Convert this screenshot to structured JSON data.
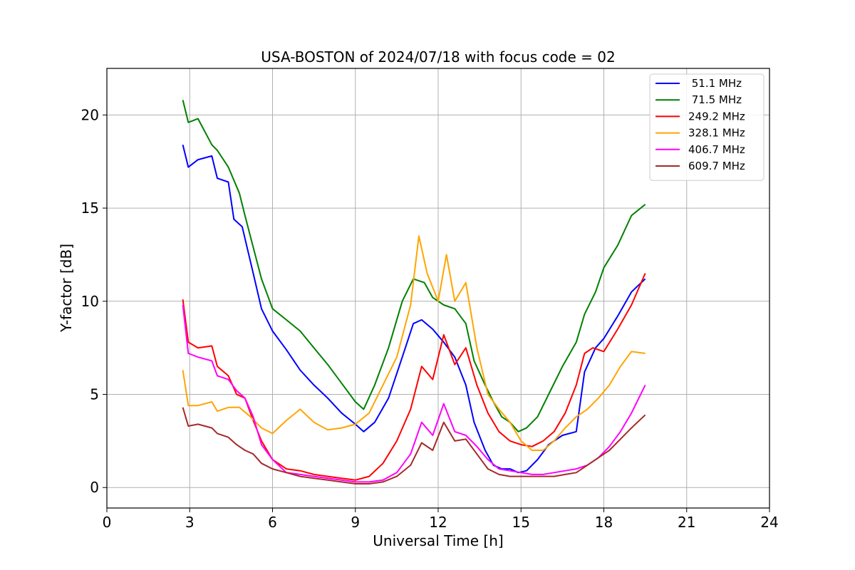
{
  "chart_data": {
    "type": "line",
    "title": "USA-BOSTON of 2024/07/18 with focus code = 02",
    "xlabel": "Universal Time [h]",
    "ylabel": "Y-factor [dB]",
    "xlim": [
      0,
      24
    ],
    "ylim": [
      -1.1,
      22.5
    ],
    "xticks": [
      0,
      3,
      6,
      9,
      12,
      15,
      18,
      21,
      24
    ],
    "yticks": [
      0,
      5,
      10,
      15,
      20
    ],
    "grid": true,
    "legend_position": "top-right",
    "series": [
      {
        "name": " 51.1 MHz",
        "color": "#0000ff",
        "x": [
          2.75,
          2.95,
          3.3,
          3.8,
          4.0,
          4.4,
          4.6,
          4.9,
          5.3,
          5.6,
          6.0,
          6.5,
          7.0,
          7.5,
          8.0,
          8.5,
          9.0,
          9.3,
          9.7,
          10.2,
          10.7,
          11.1,
          11.4,
          11.8,
          12.2,
          12.6,
          13.0,
          13.3,
          13.7,
          14.0,
          14.3,
          14.6,
          14.9,
          15.2,
          15.6,
          16.0,
          16.5,
          17.0,
          17.3,
          17.7,
          18.0,
          18.5,
          19.0,
          19.5
        ],
        "y": [
          18.4,
          17.2,
          17.6,
          17.8,
          16.6,
          16.4,
          14.4,
          14.0,
          11.5,
          9.6,
          8.4,
          7.4,
          6.3,
          5.5,
          4.8,
          4.0,
          3.4,
          3.0,
          3.5,
          4.8,
          7.0,
          8.8,
          9.0,
          8.5,
          7.8,
          7.0,
          5.5,
          3.5,
          2.0,
          1.2,
          1.0,
          1.0,
          0.8,
          0.9,
          1.5,
          2.3,
          2.8,
          3.0,
          6.2,
          7.5,
          8.0,
          9.2,
          10.5,
          11.2
        ]
      },
      {
        "name": " 71.5 MHz",
        "color": "#008000",
        "x": [
          2.75,
          2.95,
          3.3,
          3.8,
          4.0,
          4.4,
          4.8,
          5.0,
          5.3,
          5.6,
          6.0,
          6.5,
          7.0,
          7.5,
          8.0,
          8.5,
          9.0,
          9.3,
          9.7,
          10.2,
          10.7,
          11.1,
          11.5,
          11.8,
          12.2,
          12.6,
          13.0,
          13.3,
          13.7,
          14.0,
          14.3,
          14.6,
          14.9,
          15.2,
          15.6,
          16.0,
          16.5,
          17.0,
          17.3,
          17.7,
          18.0,
          18.5,
          19.0,
          19.5
        ],
        "y": [
          20.8,
          19.6,
          19.8,
          18.4,
          18.1,
          17.2,
          15.8,
          14.6,
          12.9,
          11.2,
          9.6,
          9.0,
          8.4,
          7.5,
          6.6,
          5.6,
          4.6,
          4.2,
          5.5,
          7.5,
          10.0,
          11.2,
          11.0,
          10.2,
          9.8,
          9.6,
          8.8,
          6.8,
          5.5,
          4.6,
          3.8,
          3.5,
          3.0,
          3.2,
          3.8,
          5.0,
          6.5,
          7.8,
          9.3,
          10.5,
          11.8,
          13.0,
          14.6,
          15.2
        ]
      },
      {
        "name": "249.2 MHz",
        "color": "#ff0000",
        "x": [
          2.75,
          2.95,
          3.3,
          3.8,
          4.0,
          4.4,
          4.7,
          5.0,
          5.3,
          5.6,
          6.0,
          6.5,
          7.0,
          7.5,
          8.0,
          8.5,
          9.0,
          9.5,
          10.0,
          10.5,
          11.0,
          11.4,
          11.8,
          12.2,
          12.6,
          13.0,
          13.4,
          13.8,
          14.2,
          14.6,
          15.0,
          15.4,
          15.8,
          16.2,
          16.6,
          17.0,
          17.3,
          17.6,
          18.0,
          18.5,
          19.0,
          19.5
        ],
        "y": [
          10.1,
          7.8,
          7.5,
          7.6,
          6.5,
          6.0,
          5.0,
          4.8,
          3.6,
          2.5,
          1.5,
          1.0,
          0.9,
          0.7,
          0.6,
          0.5,
          0.4,
          0.6,
          1.3,
          2.5,
          4.2,
          6.5,
          5.8,
          8.2,
          6.6,
          7.5,
          5.5,
          4.0,
          3.0,
          2.5,
          2.3,
          2.2,
          2.5,
          3.0,
          4.0,
          5.5,
          7.2,
          7.5,
          7.3,
          8.5,
          9.8,
          11.5
        ]
      },
      {
        "name": "328.1 MHz",
        "color": "#ffa500",
        "x": [
          2.75,
          2.95,
          3.3,
          3.8,
          4.0,
          4.4,
          4.8,
          5.2,
          5.6,
          6.0,
          6.5,
          7.0,
          7.5,
          8.0,
          8.5,
          9.0,
          9.5,
          10.0,
          10.5,
          11.0,
          11.3,
          11.6,
          12.0,
          12.3,
          12.6,
          13.0,
          13.4,
          13.8,
          14.2,
          14.6,
          15.0,
          15.4,
          15.8,
          16.2,
          16.6,
          17.0,
          17.4,
          17.8,
          18.2,
          18.6,
          19.0,
          19.5
        ],
        "y": [
          6.3,
          4.4,
          4.4,
          4.6,
          4.1,
          4.3,
          4.3,
          3.8,
          3.2,
          2.9,
          3.6,
          4.2,
          3.5,
          3.1,
          3.2,
          3.4,
          4.0,
          5.5,
          7.0,
          9.8,
          13.5,
          11.5,
          10.0,
          12.5,
          10.0,
          11.0,
          7.5,
          5.0,
          4.2,
          3.5,
          2.5,
          2.0,
          2.0,
          2.5,
          3.2,
          3.8,
          4.2,
          4.8,
          5.5,
          6.5,
          7.3,
          7.2
        ]
      },
      {
        "name": "406.7 MHz",
        "color": "#ff00ff",
        "x": [
          2.75,
          2.95,
          3.3,
          3.8,
          4.0,
          4.4,
          4.7,
          5.0,
          5.3,
          5.6,
          6.0,
          6.5,
          7.0,
          7.5,
          8.0,
          8.5,
          9.0,
          9.5,
          10.0,
          10.5,
          11.0,
          11.4,
          11.8,
          12.2,
          12.6,
          13.0,
          13.4,
          13.8,
          14.2,
          14.6,
          15.0,
          15.4,
          15.8,
          16.2,
          16.6,
          17.0,
          17.4,
          17.8,
          18.2,
          18.6,
          19.0,
          19.5
        ],
        "y": [
          9.8,
          7.2,
          7.0,
          6.8,
          6.0,
          5.8,
          5.2,
          4.8,
          3.8,
          2.3,
          1.5,
          0.8,
          0.7,
          0.6,
          0.5,
          0.4,
          0.3,
          0.3,
          0.4,
          0.8,
          1.8,
          3.5,
          2.8,
          4.5,
          3.0,
          2.8,
          2.2,
          1.5,
          1.0,
          0.9,
          0.8,
          0.7,
          0.7,
          0.8,
          0.9,
          1.0,
          1.2,
          1.6,
          2.2,
          3.0,
          4.0,
          5.5
        ]
      },
      {
        "name": "609.7 MHz",
        "color": "#a52a2a",
        "x": [
          2.75,
          2.95,
          3.3,
          3.8,
          4.0,
          4.4,
          4.7,
          5.0,
          5.3,
          5.6,
          6.0,
          6.5,
          7.0,
          7.5,
          8.0,
          8.5,
          9.0,
          9.5,
          10.0,
          10.5,
          11.0,
          11.4,
          11.8,
          12.2,
          12.6,
          13.0,
          13.4,
          13.8,
          14.2,
          14.6,
          15.0,
          15.4,
          15.8,
          16.2,
          16.6,
          17.0,
          17.4,
          17.8,
          18.2,
          18.6,
          19.0,
          19.5
        ],
        "y": [
          4.3,
          3.3,
          3.4,
          3.2,
          2.9,
          2.7,
          2.3,
          2.0,
          1.8,
          1.3,
          1.0,
          0.8,
          0.6,
          0.5,
          0.4,
          0.3,
          0.2,
          0.2,
          0.3,
          0.6,
          1.2,
          2.4,
          2.0,
          3.5,
          2.5,
          2.6,
          1.8,
          1.0,
          0.7,
          0.6,
          0.6,
          0.6,
          0.6,
          0.6,
          0.7,
          0.8,
          1.2,
          1.6,
          2.0,
          2.6,
          3.2,
          3.9
        ]
      }
    ]
  }
}
